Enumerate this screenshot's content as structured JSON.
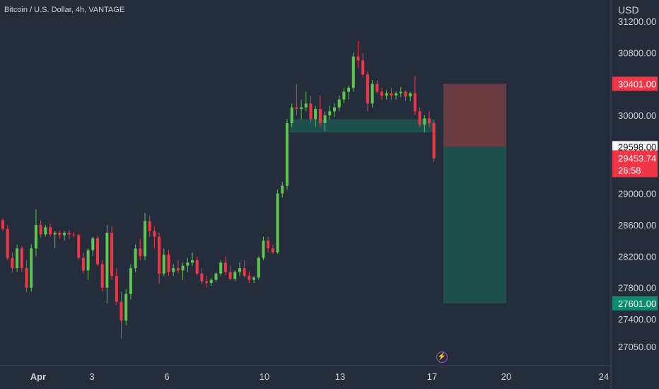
{
  "title": "Bitcoin / U.S. Dollar, 4h, VANTAGE",
  "currency": "USD",
  "alert_icon": "lightning-icon",
  "colors": {
    "background": "#252d3c",
    "up": "#5ec74d",
    "down": "#f23645",
    "zone": "#1f4e4f",
    "stop_zone": "#6b3b42",
    "target_zone": "#1f4e4f",
    "current_label": "#f23645",
    "target_label": "#0f8c6e",
    "stop_label": "#f23645"
  },
  "chart_data": {
    "type": "candlestick",
    "y_ticks": [
      "31200.00",
      "30800.00",
      "30000.00",
      "29000.00",
      "28600.00",
      "28200.00",
      "27800.00",
      "27400.00",
      "27050.00"
    ],
    "x_ticks": [
      "Apr",
      "3",
      "6",
      "10",
      "13",
      "17",
      "20",
      "24"
    ],
    "ylim": [
      26850,
      31380
    ],
    "candles": [
      [
        28660,
        28690,
        28520,
        28550
      ],
      [
        28550,
        28600,
        28150,
        28180
      ],
      [
        28180,
        28250,
        27990,
        28050
      ],
      [
        28050,
        28350,
        28000,
        28300
      ],
      [
        28300,
        28330,
        28000,
        28050
      ],
      [
        28050,
        28150,
        27740,
        27800
      ],
      [
        27800,
        28350,
        27750,
        28300
      ],
      [
        28300,
        28800,
        28200,
        28600
      ],
      [
        28600,
        28660,
        28440,
        28480
      ],
      [
        28480,
        28600,
        28450,
        28570
      ],
      [
        28570,
        28620,
        28450,
        28480
      ],
      [
        28480,
        28520,
        28300,
        28500
      ],
      [
        28500,
        28530,
        28420,
        28470
      ],
      [
        28470,
        28520,
        28400,
        28500
      ],
      [
        28500,
        28540,
        28420,
        28480
      ],
      [
        28480,
        28510,
        28440,
        28470
      ],
      [
        28470,
        28490,
        28150,
        28180
      ],
      [
        28180,
        28250,
        27980,
        28020
      ],
      [
        28020,
        28300,
        27900,
        28280
      ],
      [
        28280,
        28450,
        28200,
        28430
      ],
      [
        28430,
        28460,
        28080,
        28100
      ],
      [
        28100,
        28150,
        27750,
        27800
      ],
      [
        27800,
        28600,
        27600,
        28500
      ],
      [
        28500,
        28580,
        27900,
        27950
      ],
      [
        27950,
        28050,
        27580,
        27620
      ],
      [
        27620,
        27750,
        27150,
        27380
      ],
      [
        27380,
        27780,
        27320,
        27720
      ],
      [
        27720,
        28100,
        27650,
        28050
      ],
      [
        28050,
        28350,
        28000,
        28300
      ],
      [
        28300,
        28420,
        28150,
        28200
      ],
      [
        28200,
        28750,
        28150,
        28650
      ],
      [
        28650,
        28720,
        28450,
        28520
      ],
      [
        28520,
        28580,
        28300,
        28450
      ],
      [
        28450,
        28500,
        27850,
        27980
      ],
      [
        27980,
        28300,
        27950,
        28220
      ],
      [
        28220,
        28280,
        27950,
        28000
      ],
      [
        28000,
        28100,
        27950,
        28050
      ],
      [
        28050,
        28150,
        27980,
        28020
      ],
      [
        28020,
        28120,
        27900,
        28080
      ],
      [
        28080,
        28180,
        28000,
        28120
      ],
      [
        28120,
        28250,
        28080,
        28150
      ],
      [
        28150,
        28200,
        27950,
        27980
      ],
      [
        27980,
        28050,
        27850,
        27880
      ],
      [
        27880,
        27950,
        27800,
        27860
      ],
      [
        27860,
        27920,
        27820,
        27900
      ],
      [
        27900,
        28000,
        27870,
        27980
      ],
      [
        27980,
        28150,
        27950,
        28120
      ],
      [
        28120,
        28200,
        27960,
        28000
      ],
      [
        28000,
        28080,
        27890,
        27910
      ],
      [
        27910,
        28020,
        27880,
        28000
      ],
      [
        28000,
        28120,
        27950,
        28050
      ],
      [
        28050,
        28150,
        27930,
        27950
      ],
      [
        27950,
        28010,
        27860,
        27900
      ],
      [
        27900,
        27950,
        27860,
        27930
      ],
      [
        27930,
        28200,
        27900,
        28180
      ],
      [
        28180,
        28450,
        28150,
        28400
      ],
      [
        28400,
        28450,
        28250,
        28300
      ],
      [
        28300,
        28350,
        28230,
        28250
      ],
      [
        28250,
        29050,
        28230,
        29000
      ],
      [
        29000,
        29150,
        28950,
        29100
      ],
      [
        29100,
        29950,
        29050,
        29900
      ],
      [
        29900,
        30150,
        29850,
        30100
      ],
      [
        30100,
        30400,
        30000,
        30080
      ],
      [
        30080,
        30200,
        29950,
        30100
      ],
      [
        30100,
        30300,
        30050,
        30150
      ],
      [
        30150,
        30250,
        29900,
        29950
      ],
      [
        29950,
        30120,
        29850,
        30080
      ],
      [
        30080,
        30250,
        29850,
        29900
      ],
      [
        29900,
        30050,
        29800,
        30000
      ],
      [
        30000,
        30120,
        29950,
        30050
      ],
      [
        30050,
        30150,
        29980,
        30100
      ],
      [
        30100,
        30250,
        30050,
        30200
      ],
      [
        30200,
        30350,
        30150,
        30300
      ],
      [
        30300,
        30380,
        30200,
        30350
      ],
      [
        30350,
        30800,
        30300,
        30750
      ],
      [
        30750,
        30950,
        30600,
        30700
      ],
      [
        30700,
        30800,
        30480,
        30520
      ],
      [
        30520,
        30560,
        30050,
        30150
      ],
      [
        30150,
        30450,
        30100,
        30400
      ],
      [
        30400,
        30450,
        30280,
        30300
      ],
      [
        30300,
        30350,
        30200,
        30250
      ],
      [
        30250,
        30320,
        30200,
        30280
      ],
      [
        30280,
        30350,
        30200,
        30250
      ],
      [
        30250,
        30300,
        30200,
        30280
      ],
      [
        30280,
        30360,
        30230,
        30300
      ],
      [
        30300,
        30320,
        30180,
        30240
      ],
      [
        30240,
        30300,
        30180,
        30280
      ],
      [
        30280,
        30500,
        30000,
        30050
      ],
      [
        30050,
        30100,
        29850,
        29880
      ],
      [
        29880,
        30000,
        29780,
        29960
      ],
      [
        29960,
        30050,
        29850,
        29900
      ],
      [
        29900,
        29930,
        29400,
        29450
      ]
    ],
    "zone": {
      "from": 29780,
      "to": 29950
    },
    "position": {
      "stop": 30401,
      "entry": 29598,
      "target": 27601
    },
    "price_labels": {
      "entry": "29598.00",
      "stop": "30401.00",
      "current": "29453.74",
      "countdown": "26:58",
      "target": "27601.00"
    }
  }
}
